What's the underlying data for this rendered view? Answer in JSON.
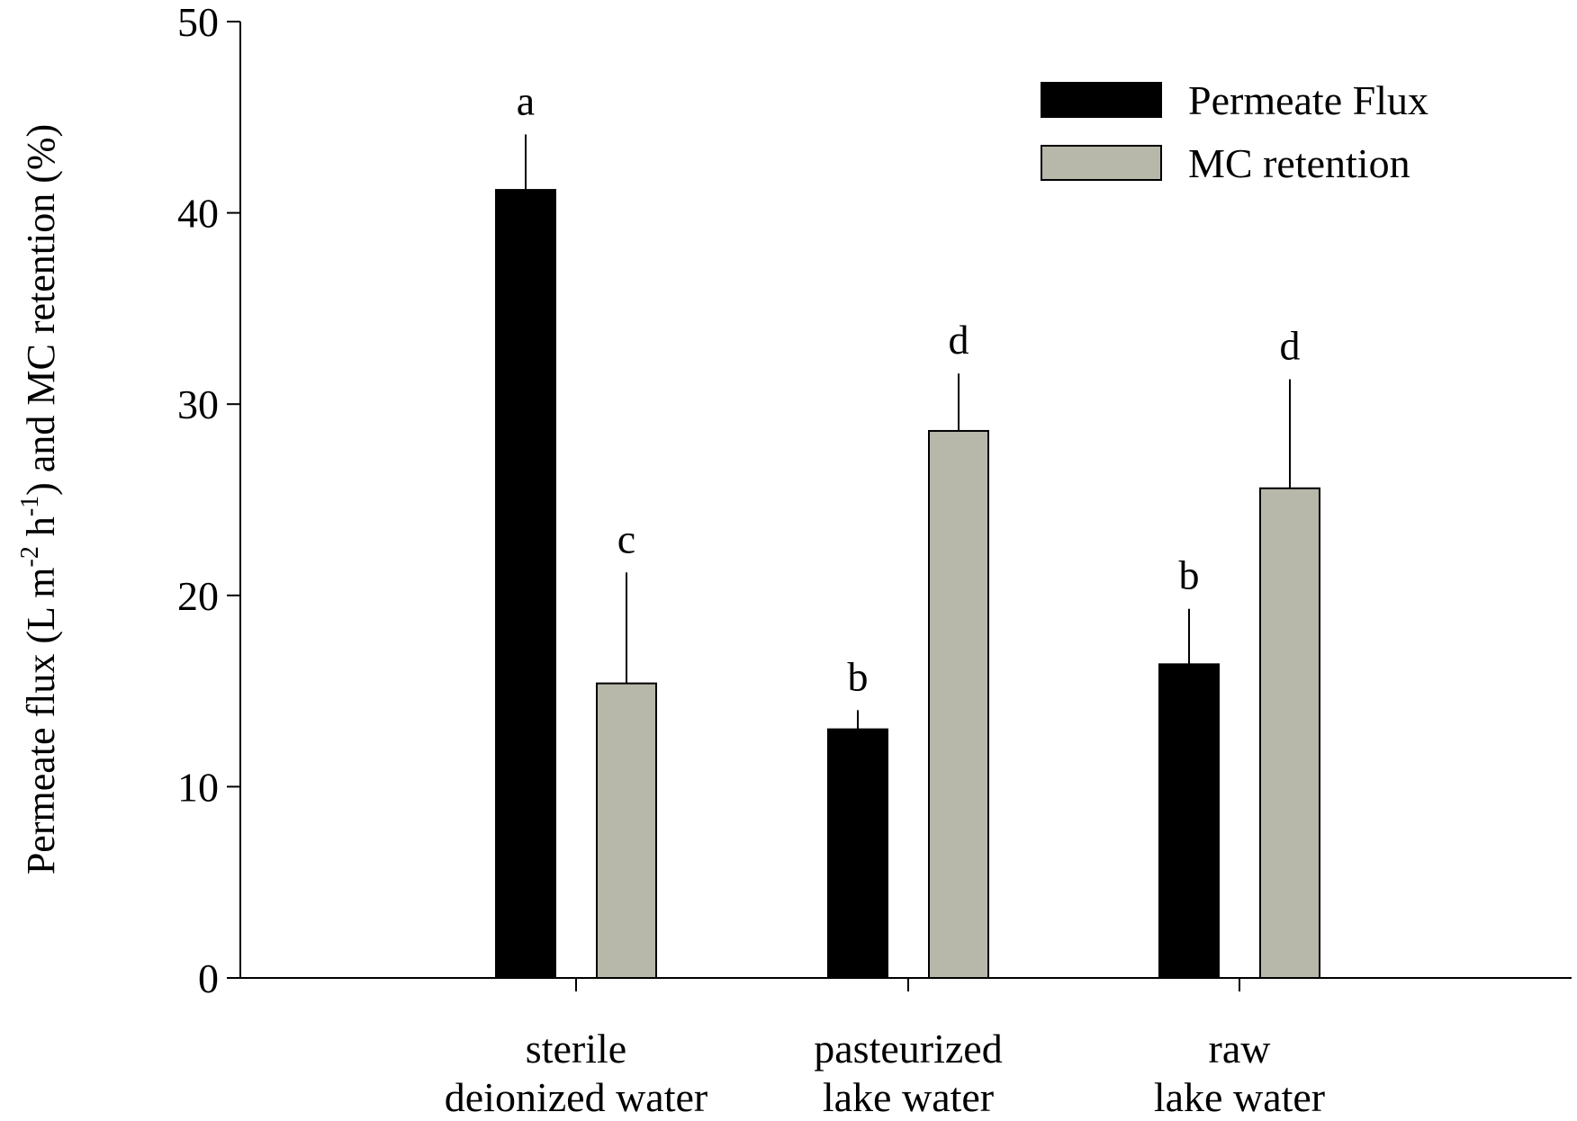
{
  "chart_data": {
    "type": "bar",
    "title": "",
    "xlabel": "",
    "ylabel": {
      "parts": [
        "Permeate flux (L m",
        "-2",
        " h",
        "-1",
        ") and MC retention (%)"
      ]
    },
    "ylim": [
      0,
      50
    ],
    "yticks": [
      "0",
      "10",
      "20",
      "30",
      "40",
      "50"
    ],
    "categories": [
      [
        "sterile",
        "deionized water"
      ],
      [
        "pasteurized",
        "lake water"
      ],
      [
        "raw",
        "lake water"
      ]
    ],
    "series": [
      {
        "name": "Permeate Flux",
        "color": "#000000",
        "values": [
          41.2,
          13.0,
          16.4
        ],
        "errors": [
          2.9,
          1.0,
          2.9
        ],
        "labels": [
          "a",
          "b",
          "b"
        ]
      },
      {
        "name": "MC retention",
        "color": "#b8b8aa",
        "values": [
          15.4,
          28.6,
          25.6
        ],
        "errors": [
          5.8,
          3.0,
          5.7
        ],
        "labels": [
          "c",
          "d",
          "d"
        ]
      }
    ],
    "legend_position": "top-right",
    "grid": false
  }
}
